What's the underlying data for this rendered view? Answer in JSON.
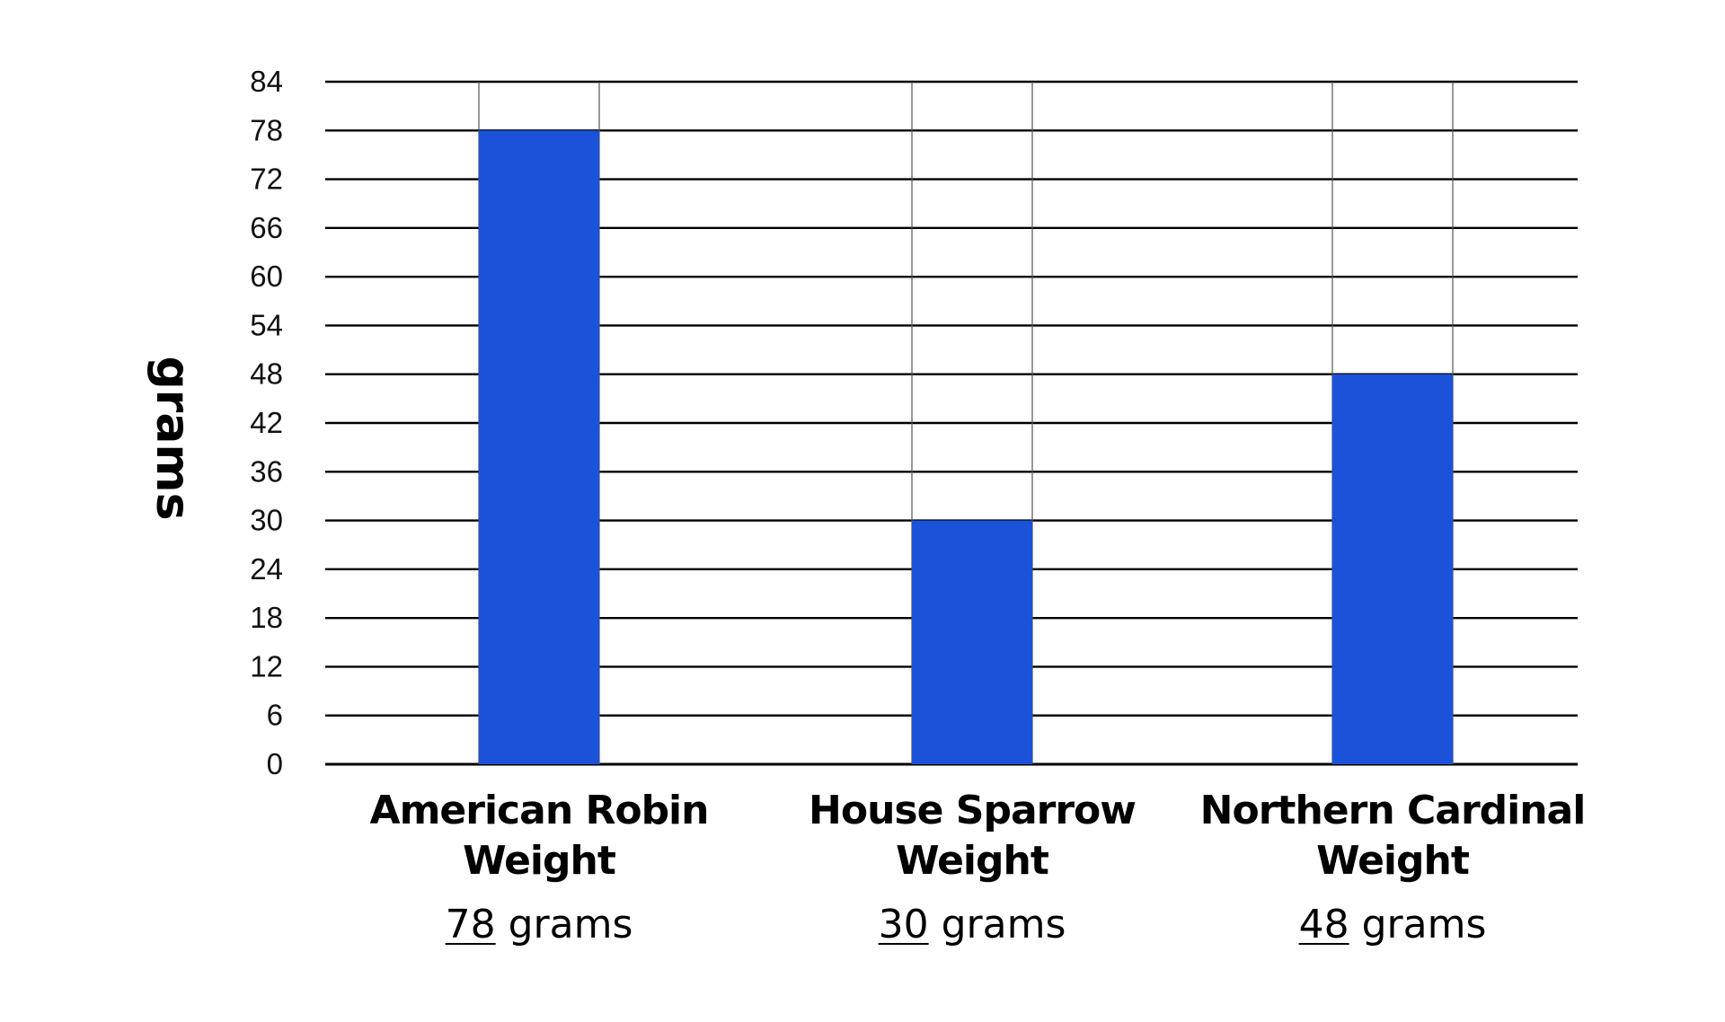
{
  "chart_data": {
    "type": "bar",
    "ylabel": "grams",
    "ylim": [
      0,
      84
    ],
    "yticks": [
      0,
      6,
      12,
      18,
      24,
      30,
      36,
      42,
      48,
      54,
      60,
      66,
      72,
      78,
      84
    ],
    "categories": [
      {
        "line1": "American Robin",
        "line2": "Weight"
      },
      {
        "line1": "House Sparrow",
        "line2": "Weight"
      },
      {
        "line1": "Northern Cardinal",
        "line2": "Weight"
      }
    ],
    "values": [
      78,
      30,
      48
    ],
    "value_unit": "grams",
    "bar_color": "#1b52d9",
    "grid": true
  }
}
